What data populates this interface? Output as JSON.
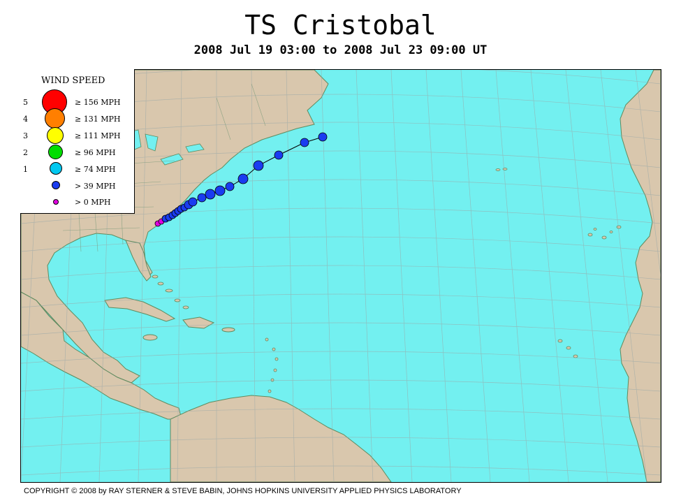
{
  "header": {
    "title": "TS Cristobal",
    "subtitle": "2008 Jul 19 03:00 to 2008 Jul 23 09:00 UT"
  },
  "legend": {
    "title": "WIND SPEED",
    "rows": [
      {
        "category": "5",
        "label": "≥ 156 MPH",
        "color": "#ff0000"
      },
      {
        "category": "4",
        "label": "≥ 131 MPH",
        "color": "#ff7f00"
      },
      {
        "category": "3",
        "label": "≥ 111 MPH",
        "color": "#ffff00"
      },
      {
        "category": "2",
        "label": "≥ 96 MPH",
        "color": "#00dd00"
      },
      {
        "category": "1",
        "label": "≥ 74 MPH",
        "color": "#00c8f0"
      },
      {
        "category": "",
        "label": "> 39 MPH",
        "color": "#1a3cf0"
      },
      {
        "category": "",
        "label": "> 0 MPH",
        "color": "#e000e0"
      }
    ]
  },
  "colors": {
    "ocean": "#73f0f0",
    "land": "#d9c7ad",
    "coast": "#5f8a5f",
    "grid": "#9aa8a8",
    "track": "#000000"
  },
  "storm_track": {
    "note_levels": "points from start (southwest) to end (northeast)",
    "intensities": [
      "0",
      "0",
      "39",
      "39",
      "39",
      "39",
      "39",
      "39",
      "39",
      "39",
      "39",
      "39",
      "39",
      "39",
      "39",
      "39",
      "39",
      "39",
      "39",
      "39",
      "39"
    ]
  },
  "footer": {
    "copyright": "COPYRIGHT © 2008 by RAY STERNER & STEVE BABIN, JOHNS HOPKINS UNIVERSITY APPLIED PHYSICS LABORATORY"
  }
}
